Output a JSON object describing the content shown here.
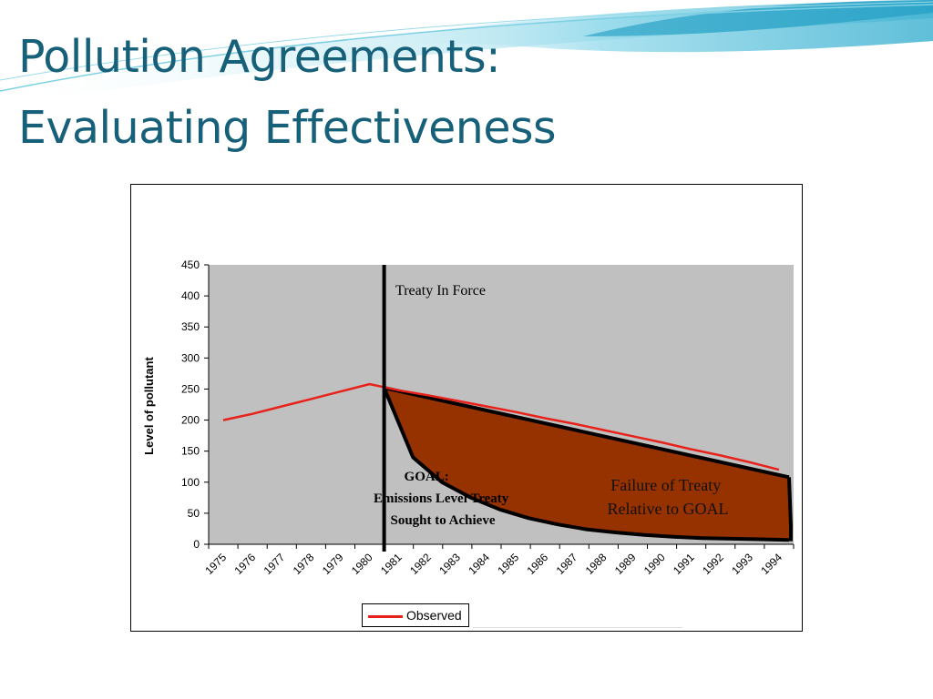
{
  "slide": {
    "title_line1": "Pollution Agreements:",
    "title_line2": "Evaluating Effectiveness"
  },
  "colors": {
    "title": "#17607a",
    "observed_line": "#e8221b",
    "failure_area": "#963100",
    "plot_bg": "#c0c0c0"
  },
  "chart_data": {
    "type": "line",
    "x": [
      "1975",
      "1976",
      "1977",
      "1978",
      "1979",
      "1980",
      "1981",
      "1982",
      "1983",
      "1984",
      "1985",
      "1986",
      "1987",
      "1988",
      "1989",
      "1990",
      "1991",
      "1992",
      "1993",
      "1994"
    ],
    "ylabel": "Level of pollutant",
    "ylim": [
      0,
      450
    ],
    "yticks": [
      0,
      50,
      100,
      150,
      200,
      250,
      300,
      350,
      400,
      450
    ],
    "series": [
      {
        "name": "Observed",
        "color": "#e8221b",
        "values": [
          200,
          210,
          222,
          234,
          246,
          258,
          248,
          240,
          231,
          222,
          213,
          203,
          194,
          184,
          174,
          164,
          153,
          143,
          132,
          120
        ]
      }
    ],
    "goal_curve": [
      252,
      140,
      100,
      75,
      56,
      42,
      32,
      24,
      19,
      15,
      12,
      10,
      9,
      8,
      7
    ],
    "annotations": {
      "treaty_line_label": "Treaty In Force",
      "goal_label_lines": [
        "GOAL:",
        "Emissions Level Treaty",
        "Sought to Achieve"
      ],
      "failure_label_lines": [
        "Failure of Treaty",
        "Relative to GOAL"
      ]
    },
    "legend": {
      "entries": [
        "Observed"
      ],
      "position": "bottom"
    },
    "grid": false
  }
}
